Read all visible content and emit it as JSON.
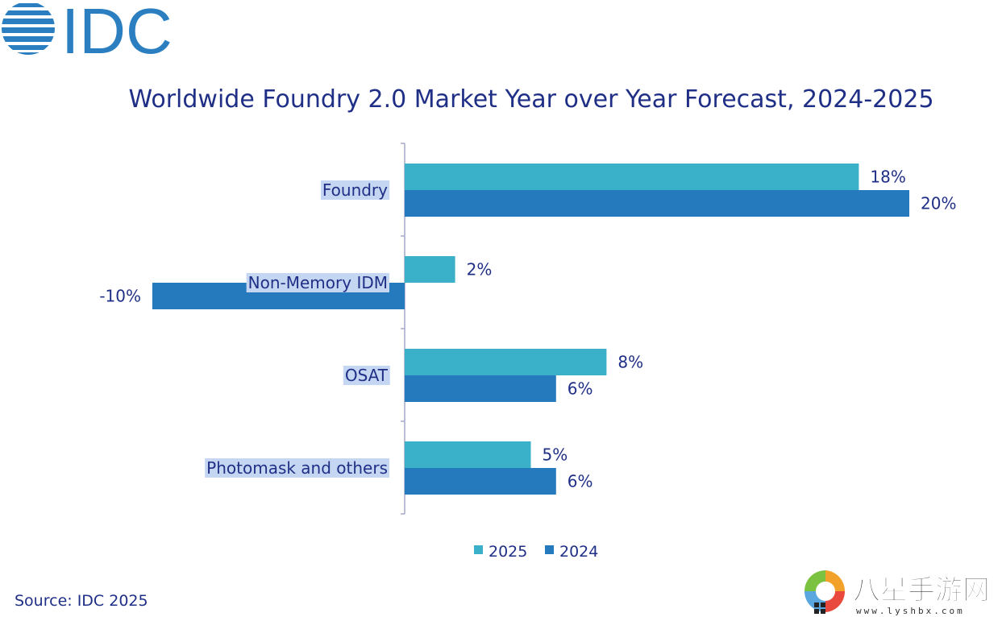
{
  "brand": {
    "logo_text": "IDC"
  },
  "source_note": "Source: IDC 2025",
  "watermark": {
    "text": "八星手游网",
    "url_text": "www.lyshbx.com"
  },
  "colors": {
    "series_2025": "#3bb0c9",
    "series_2024": "#2579bd",
    "text": "#1f2f86",
    "label_highlight": "#c5d6f3",
    "axis": "#a3a8c8"
  },
  "chart_data": {
    "type": "bar",
    "orientation": "horizontal",
    "title": "Worldwide Foundry 2.0 Market Year over Year Forecast, 2024-2025",
    "categories": [
      "Foundry",
      "Non-Memory IDM",
      "OSAT",
      "Photomask and others"
    ],
    "series": [
      {
        "name": "2025",
        "values": [
          18,
          2,
          8,
          5
        ],
        "labels": [
          "18%",
          "2%",
          "8%",
          "5%"
        ]
      },
      {
        "name": "2024",
        "values": [
          20,
          -10,
          6,
          6
        ],
        "labels": [
          "20%",
          "-10%",
          "6%",
          "6%"
        ]
      }
    ],
    "xlim": [
      -10,
      20
    ],
    "unit": "%",
    "grid": false,
    "legend_position": "bottom"
  }
}
